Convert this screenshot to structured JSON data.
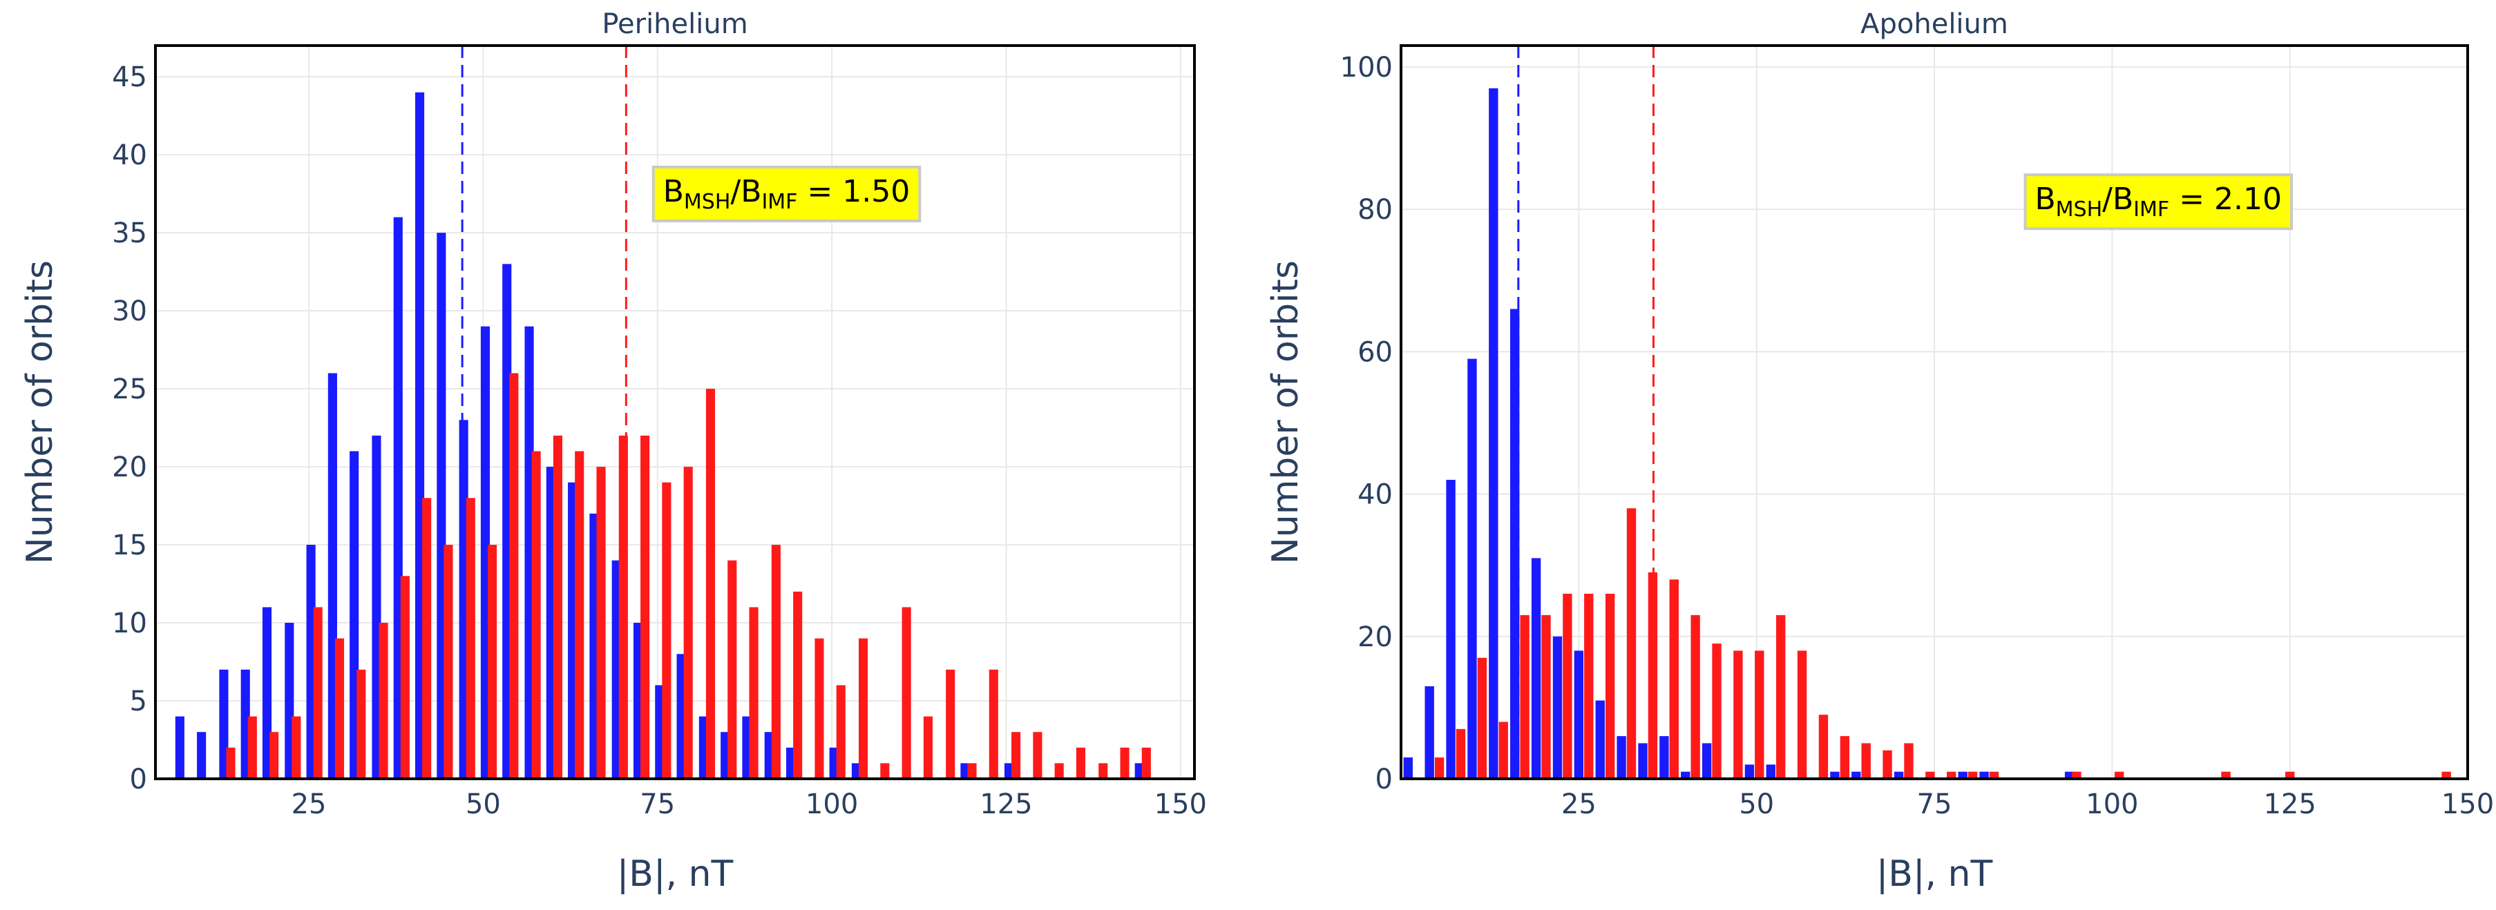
{
  "colors": {
    "series_a": "#1a1aff",
    "series_b": "#ff1a1a",
    "grid": "#e8e8e8",
    "annotation_bg": "#ffff00",
    "annotation_border": "#c9c9c9",
    "text": "#2a3f5f"
  },
  "chart_data": [
    {
      "type": "bar",
      "title": "Perihelium",
      "xlabel": "|B|, nT",
      "ylabel": "Number of orbits",
      "xlim": [
        3,
        152
      ],
      "ylim": [
        0,
        47
      ],
      "xticks": [
        25,
        50,
        75,
        100,
        125,
        150
      ],
      "yticks": [
        0,
        5,
        10,
        15,
        20,
        25,
        30,
        35,
        40,
        45
      ],
      "grid": true,
      "bin_width": 1.3,
      "vlines": [
        {
          "x": 47,
          "series": 0
        },
        {
          "x": 70.5,
          "series": 1
        }
      ],
      "annotation": {
        "base": "B",
        "sub1": "MSH",
        "mid": "/B",
        "sub2": "IMF",
        "tail": " = 1.50",
        "x": 93.5,
        "y": 37
      },
      "series": [
        {
          "x": [
            6.5,
            9.6,
            12.8,
            15.9,
            19.0,
            22.2,
            25.3,
            28.4,
            31.5,
            34.7,
            37.8,
            40.9,
            44.0,
            47.2,
            50.3,
            53.4,
            56.6,
            59.7,
            62.8,
            65.9,
            69.1,
            72.2,
            75.3,
            78.4,
            81.6,
            84.7,
            87.8,
            91.0,
            94.1,
            97.2,
            100.3,
            103.5,
            106.6,
            109.7,
            112.8,
            116.0,
            119.1,
            122.2,
            125.4,
            128.5,
            131.6,
            134.7,
            137.9,
            141.0,
            144.1
          ],
          "values": [
            4,
            3,
            7,
            7,
            11,
            10,
            15,
            26,
            21,
            22,
            36,
            44,
            35,
            23,
            29,
            33,
            29,
            20,
            19,
            17,
            14,
            10,
            6,
            8,
            4,
            3,
            4,
            3,
            2,
            0,
            2,
            1,
            0,
            0,
            0,
            0,
            1,
            0,
            1,
            0,
            0,
            0,
            0,
            0,
            1
          ]
        },
        {
          "x": [
            13.8,
            16.9,
            20.0,
            23.2,
            26.3,
            29.4,
            32.5,
            35.7,
            38.8,
            41.9,
            45.0,
            48.2,
            51.3,
            54.4,
            57.6,
            60.7,
            63.8,
            66.9,
            70.1,
            73.2,
            76.3,
            79.4,
            82.6,
            85.7,
            88.8,
            92.0,
            95.1,
            98.2,
            101.3,
            104.5,
            107.6,
            110.7,
            113.8,
            117.0,
            120.1,
            123.2,
            126.4,
            129.5,
            132.6,
            135.7,
            138.9,
            142.0,
            145.1
          ],
          "values": [
            2,
            4,
            3,
            4,
            11,
            9,
            7,
            10,
            13,
            18,
            15,
            18,
            15,
            26,
            21,
            22,
            21,
            20,
            22,
            22,
            19,
            20,
            25,
            14,
            11,
            15,
            12,
            9,
            6,
            9,
            1,
            11,
            4,
            7,
            1,
            7,
            3,
            3,
            1,
            2,
            1,
            2,
            2
          ]
        }
      ]
    },
    {
      "type": "bar",
      "title": "Apohelium",
      "xlabel": "|B|, nT",
      "ylabel": "Number of orbits",
      "xlim": [
        0,
        150
      ],
      "ylim": [
        0,
        103
      ],
      "xticks": [
        25,
        50,
        75,
        100,
        125,
        150
      ],
      "yticks": [
        0,
        20,
        40,
        60,
        80,
        100
      ],
      "grid": true,
      "bin_width": 1.3,
      "vlines": [
        {
          "x": 16.5,
          "series": 0
        },
        {
          "x": 35.5,
          "series": 1
        }
      ],
      "annotation": {
        "base": "B",
        "sub1": "MSH",
        "mid": "/B",
        "sub2": "IMF",
        "tail": " = 2.10",
        "x": 106.5,
        "y": 80
      },
      "series": [
        {
          "x": [
            1.0,
            4.0,
            7.0,
            10.0,
            13.0,
            16.0,
            19.0,
            22.0,
            25.0,
            28.0,
            31.0,
            34.0,
            37.0,
            40.0,
            43.0,
            46.0,
            49.0,
            52.0,
            55.0,
            58.0,
            61.0,
            64.0,
            67.0,
            70.0,
            73.0,
            76.0,
            79.0,
            82.0,
            85.0,
            88.0,
            91.0,
            94.0
          ],
          "values": [
            3,
            13,
            42,
            59,
            97,
            66,
            31,
            20,
            18,
            11,
            6,
            5,
            6,
            1,
            5,
            0,
            2,
            2,
            0,
            0,
            1,
            1,
            0,
            1,
            0,
            0,
            1,
            1,
            0,
            0,
            0,
            1
          ]
        },
        {
          "x": [
            5.4,
            8.4,
            11.4,
            14.4,
            17.4,
            20.4,
            23.4,
            26.4,
            29.4,
            32.4,
            35.4,
            38.4,
            41.4,
            44.4,
            47.4,
            50.4,
            53.4,
            56.4,
            59.4,
            62.4,
            65.4,
            68.4,
            71.4,
            74.4,
            77.4,
            80.4,
            83.4,
            95.0,
            101.0,
            116.0,
            125.0,
            147.0
          ],
          "values": [
            3,
            7,
            17,
            8,
            23,
            23,
            26,
            26,
            26,
            38,
            29,
            28,
            23,
            19,
            18,
            18,
            23,
            18,
            9,
            6,
            5,
            4,
            5,
            1,
            1,
            1,
            1,
            1,
            1,
            1,
            1,
            1
          ]
        }
      ]
    }
  ]
}
